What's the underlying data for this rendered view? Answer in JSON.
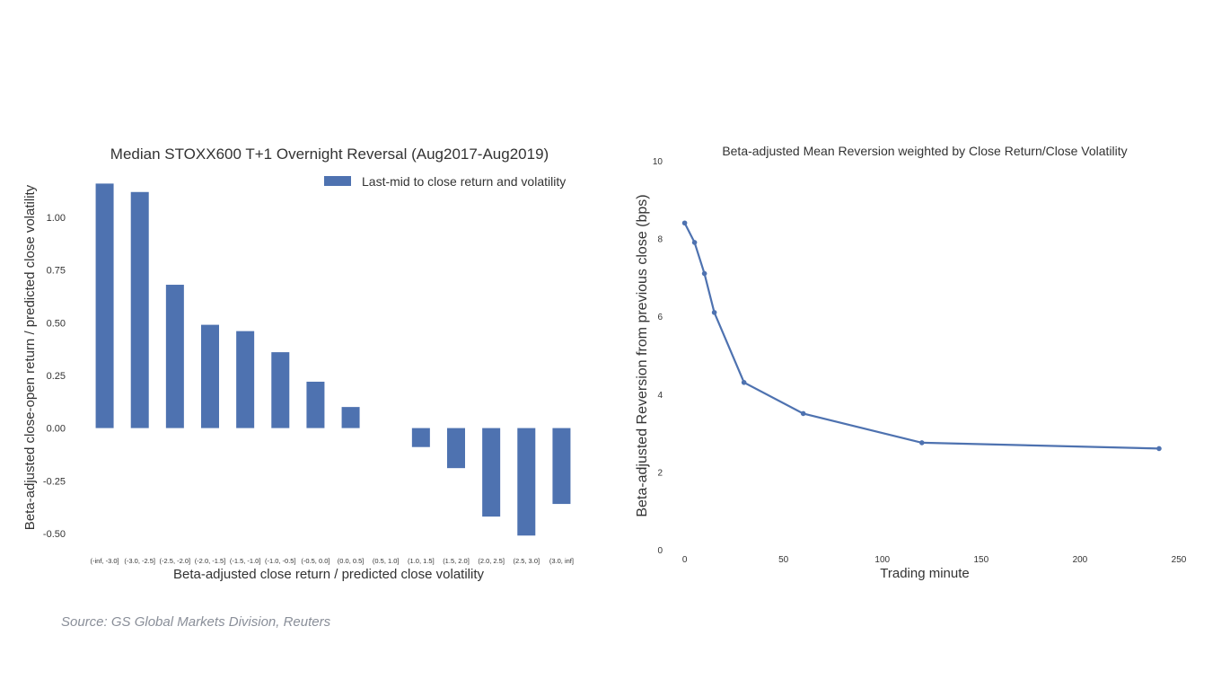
{
  "colors": {
    "bar": "#4e72b0",
    "line": "#4e72b0",
    "text": "#333333",
    "source": "#8a8f99"
  },
  "source": "Source: GS Global Markets Division, Reuters",
  "chart_data": [
    {
      "type": "bar",
      "title": "Median STOXX600 T+1 Overnight Reversal (Aug2017-Aug2019)",
      "xlabel": "Beta-adjusted close return / predicted close volatility",
      "ylabel": "Beta-adjusted close-open return / predicted close volatility",
      "legend": {
        "entries": [
          "Last-mid to close return and volatility"
        ],
        "placement": "top-right"
      },
      "grid": false,
      "ylim": [
        -0.56,
        1.2
      ],
      "yticks": [
        -0.5,
        -0.25,
        0.0,
        0.25,
        0.5,
        0.75,
        1.0
      ],
      "ytick_labels": [
        "-0.50",
        "-0.25",
        "0.00",
        "0.25",
        "0.50",
        "0.75",
        "1.00"
      ],
      "categories": [
        "(-inf, -3.0]",
        "(-3.0, -2.5]",
        "(-2.5, -2.0]",
        "(-2.0, -1.5]",
        "(-1.5, -1.0]",
        "(-1.0, -0.5]",
        "(-0.5, 0.0]",
        "(0.0, 0.5]",
        "(0.5, 1.0]",
        "(1.0, 1.5]",
        "(1.5, 2.0]",
        "(2.0, 2.5]",
        "(2.5, 3.0]",
        "(3.0, inf]"
      ],
      "series": [
        {
          "name": "Last-mid to close return and volatility",
          "values": [
            1.16,
            1.12,
            0.68,
            0.49,
            0.46,
            0.36,
            0.22,
            0.1,
            0.0,
            -0.09,
            -0.19,
            -0.42,
            -0.51,
            -0.36
          ]
        }
      ]
    },
    {
      "type": "line",
      "title": "Beta-adjusted Mean Reversion weighted by Close Return/Close Volatility",
      "xlabel": "Trading minute",
      "ylabel": "Beta-adjusted Reversion from previous close (bps)",
      "grid": false,
      "xlim": [
        -3,
        250
      ],
      "ylim": [
        0,
        10
      ],
      "xticks": [
        0,
        50,
        100,
        150,
        200,
        250
      ],
      "yticks": [
        0,
        2,
        4,
        6,
        8,
        10
      ],
      "x": [
        0,
        5,
        10,
        15,
        30,
        60,
        120,
        240
      ],
      "series": [
        {
          "values": [
            8.4,
            7.9,
            7.1,
            6.1,
            4.3,
            3.5,
            2.75,
            2.6
          ]
        }
      ]
    }
  ]
}
